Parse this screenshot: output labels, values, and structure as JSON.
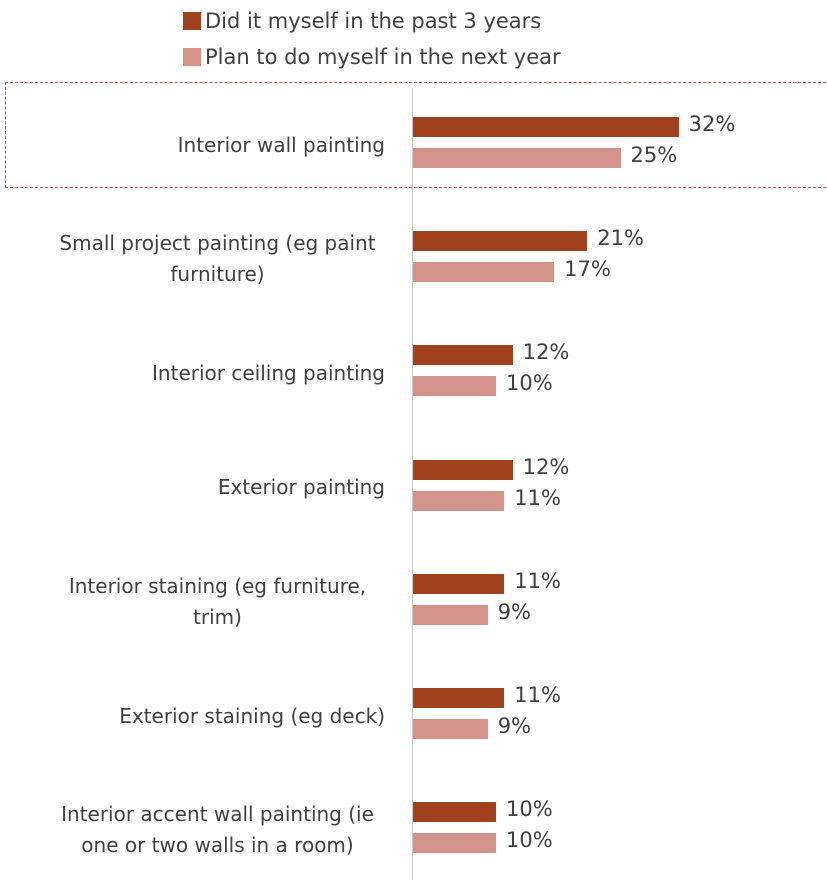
{
  "chart_data": {
    "type": "bar",
    "orientation": "horizontal",
    "categories": [
      "Interior wall painting",
      "Small project painting (eg paint furniture)",
      "Interior ceiling painting",
      "Exterior painting",
      "Interior staining (eg furniture, trim)",
      "Exterior staining (eg deck)",
      "Interior accent wall painting (ie one or two walls in a room)"
    ],
    "series": [
      {
        "name": "Did it myself in the past 3 years",
        "color": "#a0401c",
        "values": [
          32,
          21,
          12,
          12,
          11,
          11,
          10
        ],
        "value_labels": [
          "32%",
          "21%",
          "12%",
          "12%",
          "11%",
          "11%",
          "10%"
        ]
      },
      {
        "name": "Plan to do myself in the next year",
        "color": "#d4938a",
        "values": [
          25,
          17,
          10,
          11,
          9,
          9,
          10
        ],
        "value_labels": [
          "25%",
          "17%",
          "10%",
          "11%",
          "9%",
          "9%",
          "10%"
        ]
      }
    ]
  }
}
